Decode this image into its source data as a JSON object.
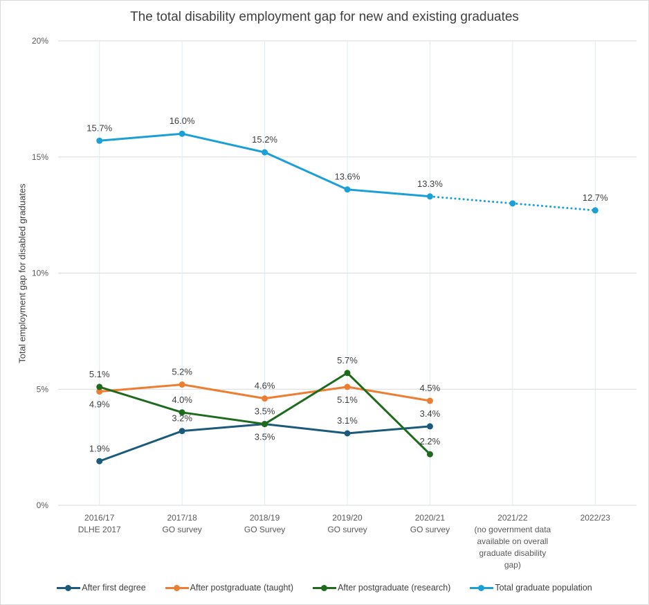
{
  "chart_data": {
    "type": "line",
    "title": "The total disability employment gap for new and existing graduates",
    "xlabel": "",
    "ylabel": "Total employment gap for disabled graduates",
    "ylim": [
      0,
      20
    ],
    "yticks": [
      "0%",
      "5%",
      "10%",
      "15%",
      "20%"
    ],
    "grid": true,
    "legend": "bottom",
    "categories": [
      [
        "2016/17",
        "DLHE 2017"
      ],
      [
        "2017/18",
        "GO survey"
      ],
      [
        "2018/19",
        "GO Survey"
      ],
      [
        "2019/20",
        "GO survey"
      ],
      [
        "2020/21",
        "GO survey"
      ],
      [
        "2021/22",
        "(no government data",
        "available on overall",
        "graduate disability",
        "gap)"
      ],
      [
        "2022/23"
      ]
    ],
    "series": [
      {
        "name": "After first degree",
        "color": "#1b5a7a",
        "values": [
          1.9,
          3.2,
          3.5,
          3.1,
          3.4,
          null,
          null
        ],
        "labels": [
          "1.9%",
          "3.2%",
          "3.5%",
          "3.1%",
          "3.4%",
          null,
          null
        ]
      },
      {
        "name": "After postgraduate (taught)",
        "color": "#ed7d31",
        "values": [
          4.9,
          5.2,
          4.6,
          5.1,
          4.5,
          null,
          null
        ],
        "labels": [
          "4.9%",
          "5.2%",
          "4.6%",
          "5.1%",
          "4.5%",
          null,
          null
        ]
      },
      {
        "name": "After postgraduate (research)",
        "color": "#1e6b1e",
        "values": [
          5.1,
          4.0,
          3.5,
          5.7,
          2.2,
          null,
          null
        ],
        "labels": [
          "5.1%",
          "4.0%",
          "3.5%",
          "5.7%",
          "2.2%",
          null,
          null
        ]
      },
      {
        "name": "Total graduate population",
        "color": "#1a9fd6",
        "values": [
          15.7,
          16.0,
          15.2,
          13.6,
          13.3,
          13.0,
          12.7
        ],
        "labels": [
          "15.7%",
          "16.0%",
          "15.2%",
          "13.6%",
          "13.3%",
          null,
          "12.7%"
        ],
        "dotted_from_index": 4
      }
    ]
  }
}
